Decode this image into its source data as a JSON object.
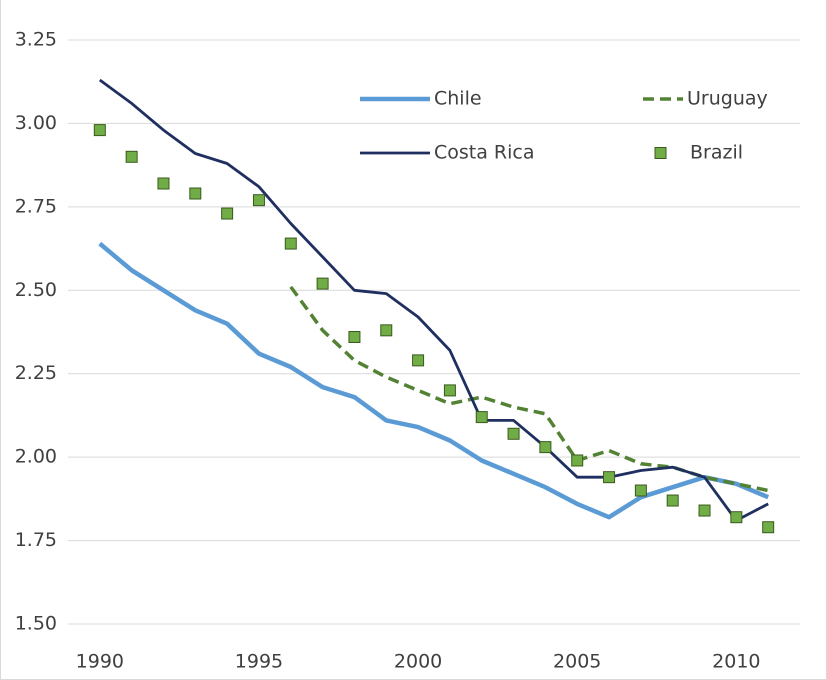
{
  "chart_data": {
    "type": "line",
    "x": [
      1990,
      1991,
      1992,
      1993,
      1994,
      1995,
      1996,
      1997,
      1998,
      1999,
      2000,
      2001,
      2002,
      2003,
      2004,
      2005,
      2006,
      2007,
      2008,
      2009,
      2010,
      2011
    ],
    "series": [
      {
        "name": "Chile",
        "color": "#5b9bd5",
        "style": "solid",
        "values": [
          2.64,
          2.56,
          2.5,
          2.44,
          2.4,
          2.31,
          2.27,
          2.21,
          2.18,
          2.11,
          2.09,
          2.05,
          1.99,
          1.95,
          1.91,
          1.86,
          1.82,
          1.88,
          1.91,
          1.94,
          1.92,
          1.88
        ]
      },
      {
        "name": "Uruguay",
        "color": "#548235",
        "style": "dashed",
        "values": [
          null,
          null,
          null,
          null,
          null,
          null,
          2.51,
          2.38,
          2.29,
          2.24,
          2.2,
          2.16,
          2.18,
          2.15,
          2.13,
          1.99,
          2.02,
          1.98,
          1.97,
          1.94,
          1.92,
          1.9
        ]
      },
      {
        "name": "Costa Rica",
        "color": "#1f2f5f",
        "style": "solid",
        "values": [
          3.13,
          3.06,
          2.98,
          2.91,
          2.88,
          2.81,
          2.7,
          2.6,
          2.5,
          2.49,
          2.42,
          2.32,
          2.11,
          2.11,
          2.03,
          1.94,
          1.94,
          1.96,
          1.97,
          1.94,
          1.81,
          1.86
        ]
      },
      {
        "name": "Brazil",
        "color": "#70ad47",
        "style": "marker",
        "values": [
          2.98,
          2.9,
          2.82,
          2.79,
          2.73,
          2.77,
          2.64,
          2.52,
          2.36,
          2.38,
          2.29,
          2.2,
          2.12,
          2.07,
          2.03,
          1.99,
          1.94,
          1.9,
          1.87,
          1.84,
          1.82,
          1.79
        ]
      }
    ],
    "xlim": [
      1989,
      2012
    ],
    "xticks": [
      1990,
      1995,
      2000,
      2005,
      2010
    ],
    "ylim": [
      1.5,
      3.25
    ],
    "yticks": [
      {
        "value": 1.5,
        "label": "1.50"
      },
      1.75,
      {
        "value": 2.0,
        "label": "2.00"
      },
      2.25,
      {
        "value": 2.5,
        "label": "2.50"
      },
      2.75,
      {
        "value": 3.0,
        "label": "3.00"
      },
      3.25
    ],
    "grid": true,
    "legend": "upper right"
  }
}
